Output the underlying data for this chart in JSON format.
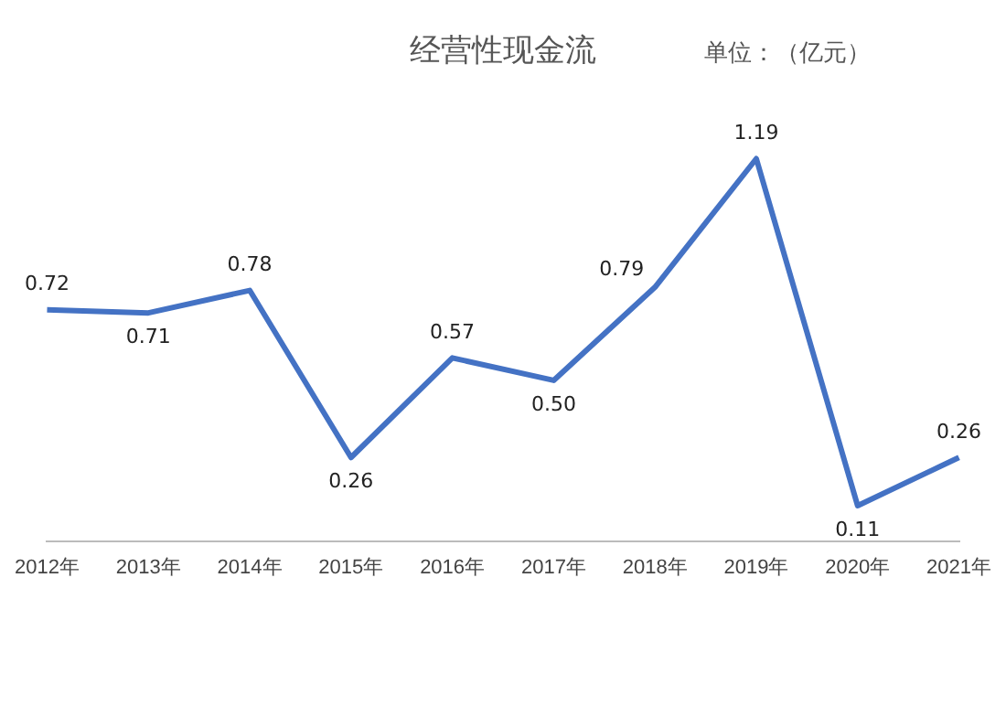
{
  "chart_data": {
    "type": "line",
    "title": "经营性现金流",
    "annotations": [
      "单位：（亿元）"
    ],
    "categories": [
      "2012年",
      "2013年",
      "2014年",
      "2015年",
      "2016年",
      "2017年",
      "2018年",
      "2019年",
      "2020年",
      "2021年"
    ],
    "values": [
      0.72,
      0.71,
      0.78,
      0.26,
      0.57,
      0.5,
      0.79,
      1.19,
      0.11,
      0.26
    ],
    "value_labels": [
      "0.72",
      "0.71",
      "0.78",
      "0.26",
      "0.57",
      "0.50",
      "0.79",
      "1.19",
      "0.11",
      "0.26"
    ],
    "color": "#4472c4",
    "marker": "none",
    "line_style": "solid",
    "legend": false,
    "grid": false
  }
}
